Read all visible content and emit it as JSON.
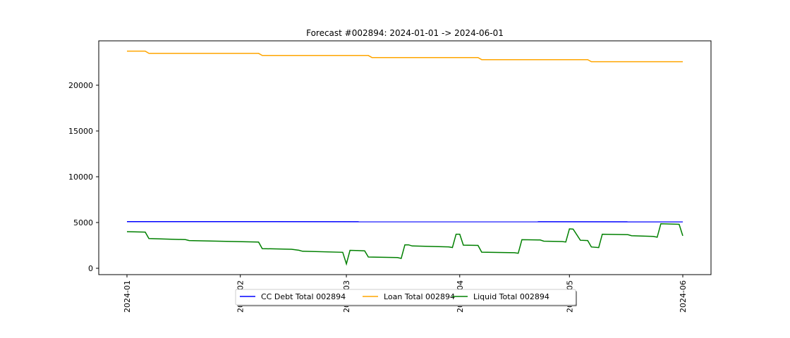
{
  "chart_data": {
    "type": "line",
    "title": "Forecast #002894: 2024-01-01 -> 2024-06-01",
    "xlabel": "",
    "ylabel": "",
    "x_ticks": [
      "2024-01",
      "2024-02",
      "2024-03",
      "2024-04",
      "2024-05",
      "2024-06"
    ],
    "xlim": [
      "2023-12-24",
      "2024-06-08"
    ],
    "ylim": [
      -600,
      24900
    ],
    "y_ticks": [
      0,
      5000,
      10000,
      15000,
      20000
    ],
    "grid": false,
    "legend_position": "bottom-center",
    "series": [
      {
        "name": "CC Debt Total 002894",
        "color": "#0000ff",
        "points": [
          [
            "2024-01-01",
            5100
          ],
          [
            "2024-06-01",
            5080
          ]
        ]
      },
      {
        "name": "Loan Total 002894",
        "color": "#ffa500",
        "points": [
          [
            "2024-01-01",
            23720
          ],
          [
            "2024-01-10",
            23720
          ],
          [
            "2024-01-12",
            23480
          ],
          [
            "2024-03-05",
            23480
          ],
          [
            "2024-03-07",
            23250
          ],
          [
            "2024-03-06",
            23250
          ],
          [
            "2024-03-07",
            23250
          ],
          [
            "2024-03-07",
            23250
          ],
          [
            "2024-03-07",
            23250
          ],
          [
            "2024-03-07",
            23250
          ],
          [
            "2024-02-09",
            23250
          ],
          [
            "2024-02-11",
            23250
          ],
          [
            "2024-03-10",
            23020
          ],
          [
            "2024-04-09",
            23020
          ],
          [
            "2024-04-11",
            22790
          ],
          [
            "2024-05-09",
            22790
          ],
          [
            "2024-05-11",
            22570
          ],
          [
            "2024-06-01",
            22570
          ]
        ]
      },
      {
        "name": "Liquid Total 002894",
        "color": "#008000",
        "points": [
          [
            "2024-01-01",
            4000
          ],
          [
            "2024-01-10",
            3950
          ],
          [
            "2024-01-12",
            3250
          ],
          [
            "2024-01-29",
            3130
          ],
          [
            "2024-01-31",
            3030
          ],
          [
            "2024-02-08",
            2970
          ],
          [
            "2024-02-20",
            2920
          ],
          [
            "2024-03-05",
            2870
          ],
          [
            "2024-03-07",
            2150
          ],
          [
            "2024-03-21",
            2080
          ],
          [
            "2024-03-24",
            1970
          ],
          [
            "2024-04-01",
            1860
          ],
          [
            "2024-03-28",
            1860
          ],
          [
            "2024-04-04",
            1830
          ],
          [
            "2024-03-24",
            1790
          ]
        ]
      }
    ]
  }
}
